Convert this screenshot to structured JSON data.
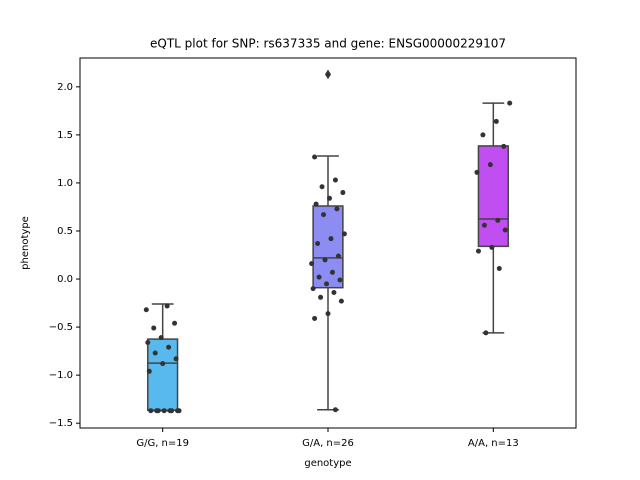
{
  "chart_data": {
    "type": "box",
    "title": "eQTL plot for SNP: rs637335 and gene: ENSG00000229107",
    "xlabel": "genotype",
    "ylabel": "phenotype",
    "categories": [
      "G/G, n=19",
      "G/A, n=26",
      "A/A, n=13"
    ],
    "boxes": [
      {
        "color": "#58b9ef",
        "whislo": -1.37,
        "q1": -1.365,
        "median": -0.875,
        "q3": -0.625,
        "whishi": -0.26,
        "fliers": []
      },
      {
        "color": "#8c8cf2",
        "whislo": -1.36,
        "q1": -0.09,
        "median": 0.22,
        "q3": 0.76,
        "whishi": 1.28,
        "fliers": [
          2.13
        ]
      },
      {
        "color": "#c04ef0",
        "whislo": -0.56,
        "q1": 0.34,
        "median": 0.625,
        "q3": 1.385,
        "whishi": 1.83,
        "fliers": []
      }
    ],
    "points": [
      [
        -0.32,
        -0.28,
        -0.51,
        -0.46,
        -0.61,
        -0.66,
        -0.71,
        -0.77,
        -0.83,
        -0.88,
        -0.96,
        -1.37,
        -1.37,
        -1.37,
        -1.37,
        -1.37,
        -1.37,
        -1.37,
        -1.37
      ],
      [
        2.13,
        1.27,
        1.03,
        0.96,
        0.9,
        0.84,
        0.78,
        0.73,
        0.67,
        0.47,
        0.42,
        0.37,
        0.24,
        0.2,
        0.16,
        0.07,
        0.02,
        -0.01,
        -0.05,
        -0.1,
        -0.14,
        -0.19,
        -0.23,
        -0.36,
        -0.41,
        -1.36
      ],
      [
        1.83,
        1.64,
        1.5,
        1.38,
        1.19,
        1.11,
        0.61,
        0.56,
        0.51,
        0.33,
        0.29,
        0.11,
        -0.56
      ]
    ],
    "point_color": "#333333",
    "ylim": [
      -1.55,
      2.3
    ],
    "yticks": [
      {
        "value": -1.5,
        "label": "−1.5"
      },
      {
        "value": -1.0,
        "label": "−1.0"
      },
      {
        "value": -0.5,
        "label": "−0.5"
      },
      {
        "value": 0.0,
        "label": "0.0"
      },
      0.5,
      {
        "value": 1.0,
        "label": "1.0"
      },
      1.5,
      {
        "value": 2.0,
        "label": "2.0"
      }
    ]
  }
}
